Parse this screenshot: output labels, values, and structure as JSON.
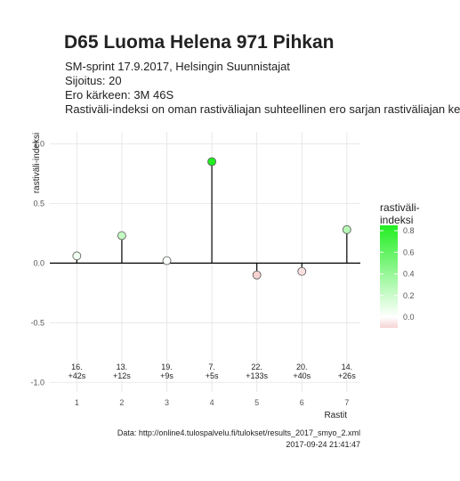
{
  "chart_data": {
    "type": "lollipop",
    "title": "D65 Luoma Helena 971 Pihkan",
    "subtitle": [
      "SM-sprint 17.9.2017, Helsingin Suunnistajat",
      "Sijoitus: 20",
      "Ero kärkeen: 3M 46S",
      "Rastiväli-indeksi on oman rastiväliajan suhteellinen ero sarjan rastiväliajan kes"
    ],
    "x": [
      1,
      2,
      3,
      4,
      5,
      6,
      7
    ],
    "values": [
      0.06,
      0.23,
      0.02,
      0.85,
      -0.1,
      -0.07,
      0.28
    ],
    "annotations": [
      [
        "16.",
        "+42s"
      ],
      [
        "13.",
        "+12s"
      ],
      [
        "19.",
        "+9s"
      ],
      [
        "7.",
        "+5s"
      ],
      [
        "22.",
        "+133s"
      ],
      [
        "20.",
        "+40s"
      ],
      [
        "14.",
        "+26s"
      ]
    ],
    "xlabel": "Rastit",
    "ylabel": "rastiväli-indeksi",
    "xlim": [
      0.4,
      7.3
    ],
    "ylim": [
      -1.08,
      1.1
    ],
    "xticks": [
      1,
      2,
      3,
      4,
      5,
      6,
      7
    ],
    "yticks": [
      {
        "value": -1,
        "label": "-1.0"
      },
      {
        "value": -0.5,
        "label": "-0.5"
      },
      {
        "value": 0,
        "label": "0.0"
      },
      {
        "value": 0.5,
        "label": "0.5"
      },
      {
        "value": 1,
        "label": "1.0"
      }
    ],
    "grid": true,
    "legend": {
      "title": [
        "rastiväli-",
        "indeksi"
      ],
      "ticks": [
        {
          "value": 0,
          "label": "0.0"
        },
        {
          "value": 0.2,
          "label": "0.2"
        },
        {
          "value": 0.4,
          "label": "0.4"
        },
        {
          "value": 0.6,
          "label": "0.6"
        },
        {
          "value": 0.8,
          "label": "0.8"
        }
      ],
      "stops": [
        -0.1,
        0,
        0.85
      ],
      "colors": [
        "#f6d2d2",
        "#ffffff",
        "#22ee22"
      ]
    },
    "caption": [
      "Data: http://online4.tulospalvelu.fi/tulokset/results_2017_smyo_2.xml",
      "2017-09-24 21:41:47"
    ]
  }
}
